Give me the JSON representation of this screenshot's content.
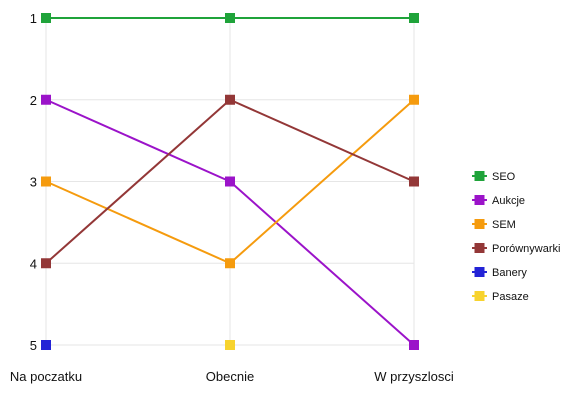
{
  "chart_data": {
    "type": "line",
    "categories": [
      "Na poczatku",
      "Obecnie",
      "W przyszlosci"
    ],
    "y_ticks": [
      "1",
      "2",
      "3",
      "4",
      "5"
    ],
    "ylim": [
      1,
      5
    ],
    "y_inverted": true,
    "grid": true,
    "legend_position": "right",
    "series": [
      {
        "name": "SEO",
        "color": "#1fa33a",
        "values": [
          1,
          1,
          1
        ]
      },
      {
        "name": "Aukcje",
        "color": "#9b13c9",
        "values": [
          2,
          3,
          5
        ]
      },
      {
        "name": "SEM",
        "color": "#f59b0e",
        "values": [
          3,
          4,
          2
        ]
      },
      {
        "name": "Porównywarki",
        "color": "#933737",
        "values": [
          4,
          2,
          3
        ]
      },
      {
        "name": "Banery",
        "color": "#2323d6",
        "values": [
          5,
          null,
          null
        ]
      },
      {
        "name": "Pasaze",
        "color": "#f7d32e",
        "values": [
          null,
          5,
          null
        ]
      }
    ]
  }
}
